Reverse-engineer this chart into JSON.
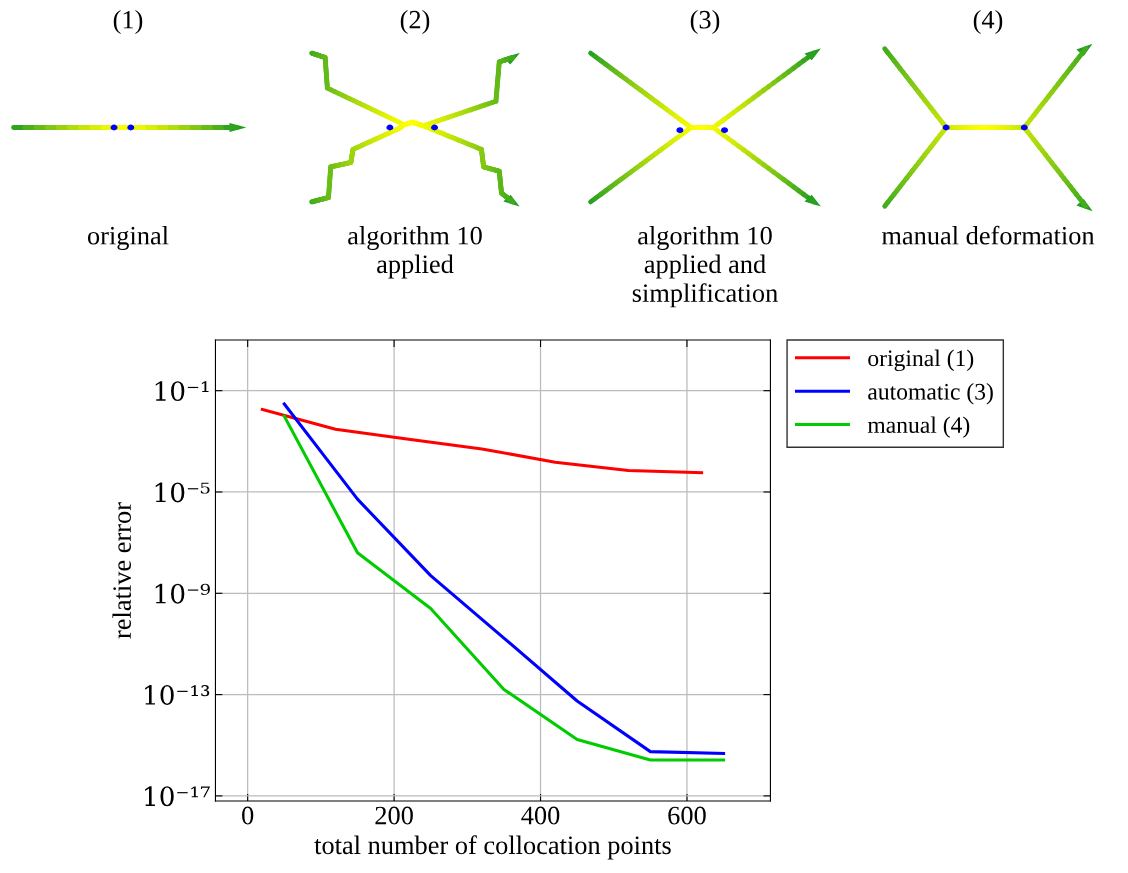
{
  "chart_data": {
    "type": "line",
    "xlabel": "total number of collocation points",
    "ylabel": "relative error",
    "log": "y",
    "xlim": [
      -44,
      714
    ],
    "xticks": [
      0,
      200,
      400,
      600
    ],
    "ylim": [
      6.3e-18,
      10
    ],
    "yticks": [
      {
        "value": 0.1,
        "label": "10⁻¹"
      },
      {
        "value": 1e-05,
        "label": "10⁻⁵"
      },
      {
        "value": 1e-09,
        "label": "10⁻⁹"
      },
      {
        "value": 1e-13,
        "label": "10⁻¹³"
      },
      {
        "value": 1e-17,
        "label": "10⁻¹⁷"
      }
    ],
    "grid": true,
    "legend": "top right",
    "marker": "none",
    "line_style": "solid",
    "series": [
      {
        "name": "original (1)",
        "color": "#ff0000",
        "x": [
          20,
          120,
          220,
          320,
          420,
          520,
          620
        ],
        "values": [
          0.018,
          0.003,
          0.0012,
          0.0005,
          0.00015,
          7e-05,
          5.8e-05
        ]
      },
      {
        "name": "automatic (3)",
        "color": "#0000ff",
        "x": [
          50,
          150,
          250,
          350,
          450,
          550,
          650
        ],
        "values": [
          0.03,
          5.2e-06,
          5e-09,
          1.7e-11,
          5.6e-14,
          5.6e-16,
          4.7e-16
        ]
      },
      {
        "name": "manual (4)",
        "color": "#00cc00",
        "x": [
          50,
          150,
          250,
          350,
          450,
          550,
          650
        ],
        "values": [
          0.0098,
          4e-08,
          2.5e-10,
          1.6e-13,
          1.7e-15,
          2.6e-16,
          2.6e-16
        ]
      }
    ],
    "annotations": [
      "(1)",
      "(2)",
      "(3)",
      "(4)",
      "original",
      "algorithm 10\napplied",
      "algorithm 10\napplied and\nsimplification",
      "manual deformation"
    ]
  }
}
